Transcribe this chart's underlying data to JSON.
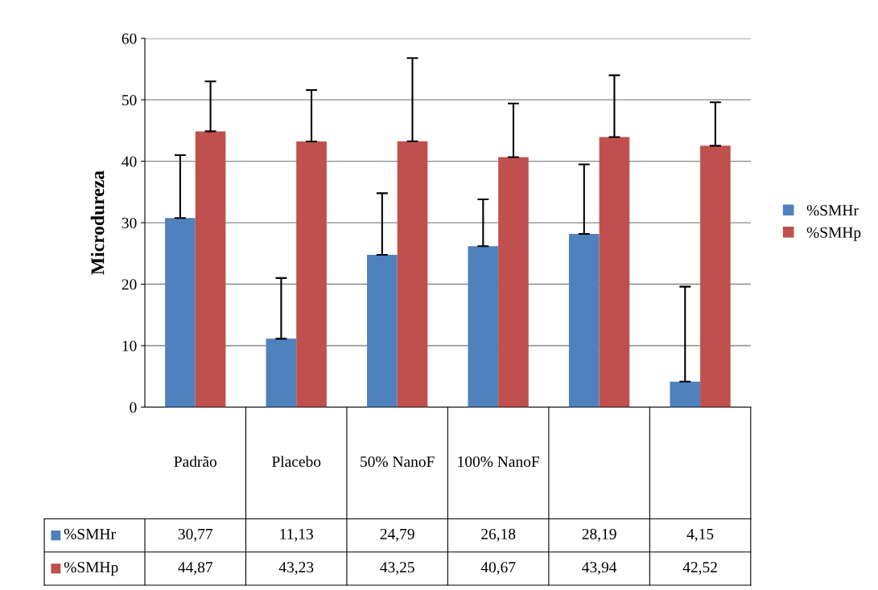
{
  "chart_data": {
    "type": "bar",
    "ylabel": "Microdureza",
    "categories": [
      "Padrão",
      "Placebo",
      "50% NanoF",
      "100% NanoF",
      null,
      null
    ],
    "series": [
      {
        "name": "%SMHr",
        "color": "#4f81bd",
        "values": [
          30.77,
          11.13,
          24.79,
          26.18,
          28.19,
          4.15
        ],
        "errors": [
          [
            30.77,
            41.0
          ],
          [
            11.13,
            21.0
          ],
          [
            24.79,
            34.8
          ],
          [
            26.18,
            33.8
          ],
          [
            28.19,
            39.5
          ],
          [
            4.15,
            19.6
          ]
        ],
        "value_labels": [
          "30,77",
          "11,13",
          "24,79",
          "26,18",
          "28,19",
          "4,15"
        ]
      },
      {
        "name": "%SMHp",
        "color": "#c0504d",
        "values": [
          44.87,
          43.23,
          43.25,
          40.67,
          43.94,
          42.52
        ],
        "errors": [
          [
            44.87,
            53.0
          ],
          [
            43.23,
            51.6
          ],
          [
            43.25,
            56.8
          ],
          [
            40.67,
            49.4
          ],
          [
            43.94,
            54.0
          ],
          [
            42.52,
            49.6
          ]
        ],
        "value_labels": [
          "44,87",
          "43,23",
          "43,25",
          "40,67",
          "43,94",
          "42,52"
        ]
      }
    ],
    "ylim": [
      0,
      60
    ],
    "yticks": [
      0,
      10,
      20,
      30,
      40,
      50,
      60
    ],
    "grid": true,
    "legend": "right"
  }
}
